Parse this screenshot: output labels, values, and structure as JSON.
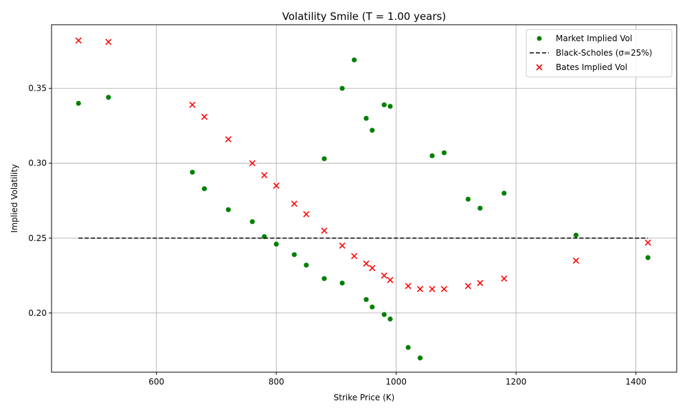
{
  "chart_data": {
    "type": "scatter",
    "title": "Volatility Smile (T = 1.00 years)",
    "xlabel": "Strike Price (K)",
    "ylabel": "Implied Volatility",
    "xlim": [
      425,
      1468
    ],
    "ylim": [
      0.1605,
      0.3925
    ],
    "xticks": [
      600,
      800,
      1000,
      1200,
      1400
    ],
    "xtick_labels": [
      "600",
      "800",
      "1000",
      "1200",
      "1400"
    ],
    "yticks": [
      0.2,
      0.25,
      0.3,
      0.35
    ],
    "ytick_labels": [
      "0.20",
      "0.25",
      "0.30",
      "0.35"
    ],
    "grid": true,
    "legend_position": "top-right",
    "series": [
      {
        "name": "Market Implied Vol",
        "kind": "scatter",
        "marker": "circle",
        "color": "#008000",
        "points": [
          [
            470,
            0.34
          ],
          [
            520,
            0.344
          ],
          [
            660,
            0.294
          ],
          [
            680,
            0.283
          ],
          [
            720,
            0.269
          ],
          [
            760,
            0.261
          ],
          [
            780,
            0.251
          ],
          [
            800,
            0.246
          ],
          [
            830,
            0.239
          ],
          [
            850,
            0.232
          ],
          [
            880,
            0.303
          ],
          [
            880,
            0.223
          ],
          [
            910,
            0.35
          ],
          [
            910,
            0.22
          ],
          [
            930,
            0.369
          ],
          [
            950,
            0.33
          ],
          [
            950,
            0.209
          ],
          [
            960,
            0.322
          ],
          [
            960,
            0.204
          ],
          [
            980,
            0.339
          ],
          [
            980,
            0.199
          ],
          [
            990,
            0.338
          ],
          [
            990,
            0.196
          ],
          [
            1020,
            0.177
          ],
          [
            1040,
            0.17
          ],
          [
            1060,
            0.305
          ],
          [
            1080,
            0.307
          ],
          [
            1120,
            0.276
          ],
          [
            1140,
            0.27
          ],
          [
            1180,
            0.28
          ],
          [
            1300,
            0.252
          ],
          [
            1420,
            0.237
          ]
        ]
      },
      {
        "name": "Black-Scholes (σ=25%)",
        "kind": "line",
        "dash": true,
        "color": "#000000",
        "points": [
          [
            470,
            0.25
          ],
          [
            1420,
            0.25
          ]
        ]
      },
      {
        "name": "Bates Implied Vol",
        "kind": "scatter",
        "marker": "x",
        "color": "#ff0000",
        "points": [
          [
            470,
            0.382
          ],
          [
            520,
            0.381
          ],
          [
            660,
            0.339
          ],
          [
            680,
            0.331
          ],
          [
            720,
            0.316
          ],
          [
            760,
            0.3
          ],
          [
            780,
            0.292
          ],
          [
            800,
            0.285
          ],
          [
            830,
            0.273
          ],
          [
            850,
            0.266
          ],
          [
            880,
            0.255
          ],
          [
            910,
            0.245
          ],
          [
            930,
            0.238
          ],
          [
            950,
            0.233
          ],
          [
            960,
            0.23
          ],
          [
            980,
            0.225
          ],
          [
            990,
            0.222
          ],
          [
            1020,
            0.218
          ],
          [
            1040,
            0.216
          ],
          [
            1060,
            0.216
          ],
          [
            1080,
            0.216
          ],
          [
            1120,
            0.218
          ],
          [
            1140,
            0.22
          ],
          [
            1180,
            0.223
          ],
          [
            1300,
            0.235
          ],
          [
            1420,
            0.247
          ]
        ]
      }
    ]
  }
}
